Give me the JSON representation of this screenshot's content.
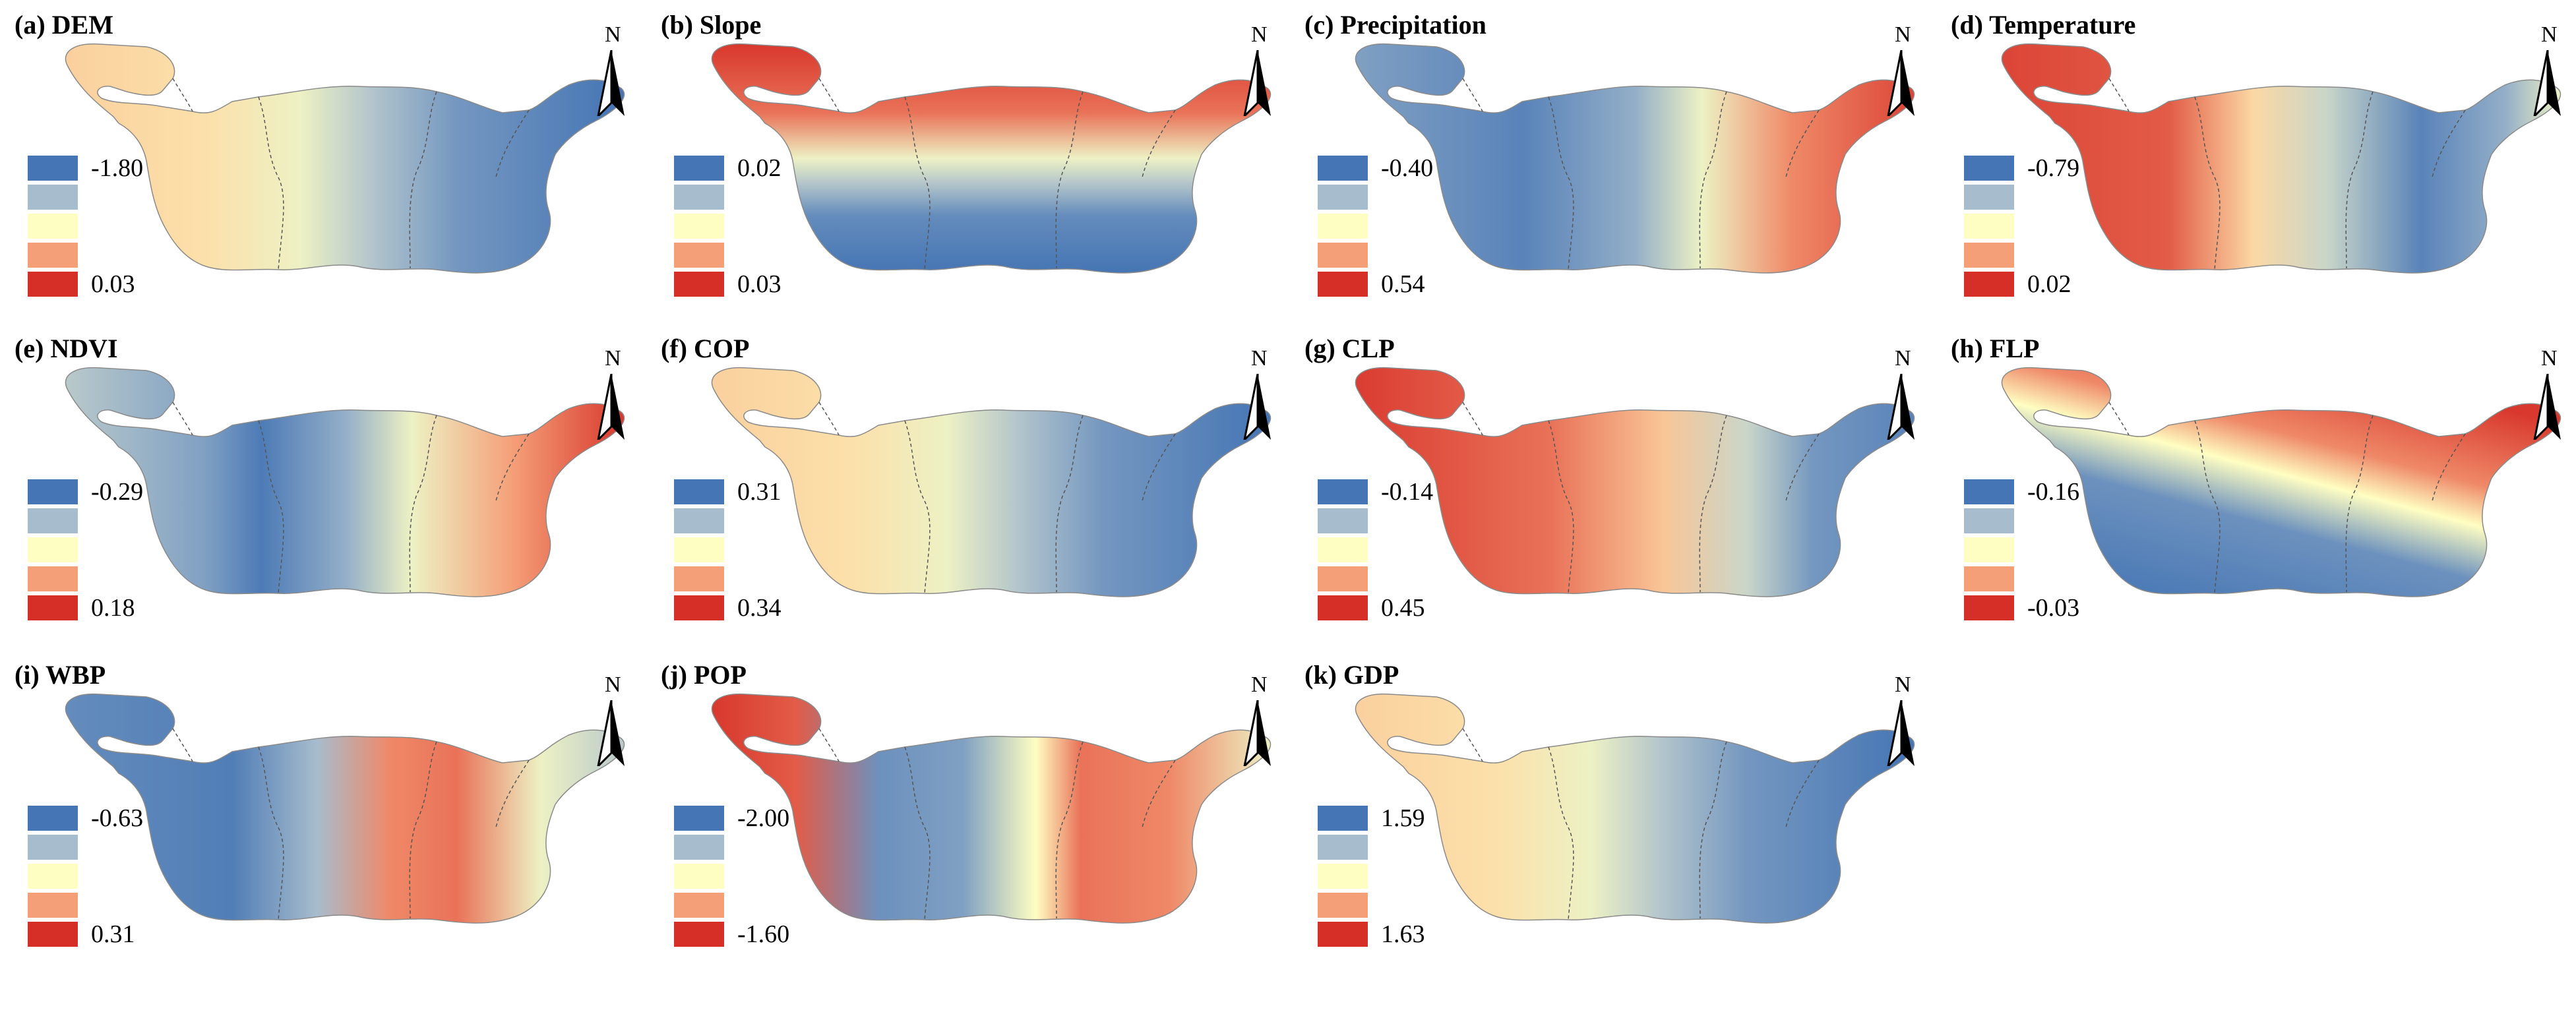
{
  "legend_colors": [
    "#4575b4",
    "#a7bccd",
    "#fffec2",
    "#f59f78",
    "#d62f27"
  ],
  "north_label": "N",
  "panels": [
    {
      "label": "(a) DEM",
      "min": "-1.80",
      "max": "0.03",
      "pattern": "west_high"
    },
    {
      "label": "(b) Slope",
      "min": "0.02",
      "max": "0.03",
      "pattern": "north_high"
    },
    {
      "label": "(c) Precipitation",
      "min": "-0.40",
      "max": "0.54",
      "pattern": "east_high"
    },
    {
      "label": "(d) Temperature",
      "min": "-0.79",
      "max": "0.02",
      "pattern": "west_high_se_low"
    },
    {
      "label": "(e) NDVI",
      "min": "-0.29",
      "max": "0.18",
      "pattern": "east_high_center_low"
    },
    {
      "label": "(f) COP",
      "min": "0.31",
      "max": "0.34",
      "pattern": "west_high"
    },
    {
      "label": "(g) CLP",
      "min": "-0.14",
      "max": "0.45",
      "pattern": "west_high_ne_low"
    },
    {
      "label": "(h) FLP",
      "min": "-0.16",
      "max": "-0.03",
      "pattern": "diagonal_ne_high"
    },
    {
      "label": "(i) WBP",
      "min": "-0.63",
      "max": "0.31",
      "pattern": "south_center_high"
    },
    {
      "label": "(j) POP",
      "min": "-2.00",
      "max": "-1.60",
      "pattern": "center_east_high"
    },
    {
      "label": "(k) GDP",
      "min": "1.59",
      "max": "1.63",
      "pattern": "west_high"
    }
  ]
}
